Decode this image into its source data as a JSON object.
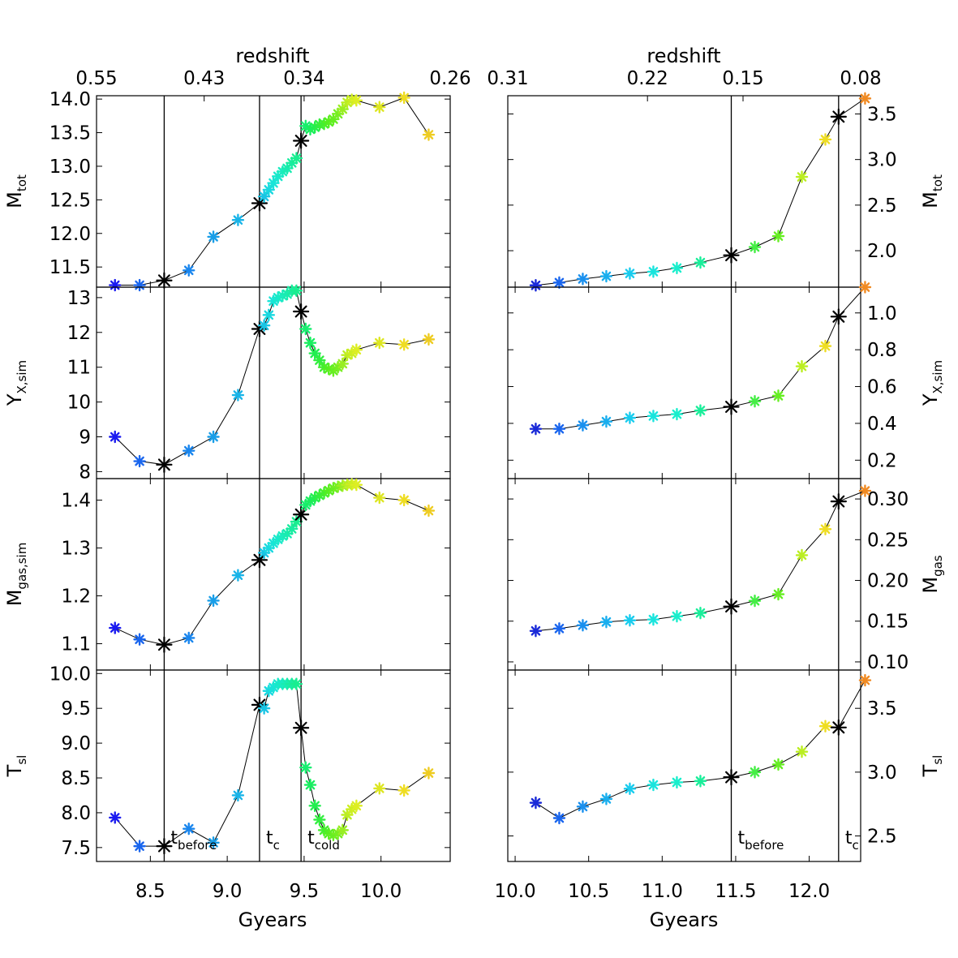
{
  "figure": {
    "left": {
      "xlabel": "Gyears",
      "top_label": "redshift",
      "xlim": [
        8.15,
        10.45
      ],
      "xticks": [
        "8.5",
        "9.0",
        "9.5",
        "10.0"
      ],
      "xtick_values": [
        8.5,
        9.0,
        9.5,
        10.0
      ],
      "top_ticks": [
        "0.55",
        "0.43",
        "0.34",
        "0.26"
      ],
      "top_tick_times": [
        8.15,
        8.85,
        9.5,
        10.45
      ],
      "vlines": [
        {
          "x": 8.59,
          "label_main": "t",
          "label_sub": "before"
        },
        {
          "x": 9.21,
          "label_main": "t",
          "label_sub": "c"
        },
        {
          "x": 9.48,
          "label_main": "t",
          "label_sub": "cold"
        }
      ],
      "x": [
        8.27,
        8.43,
        8.59,
        8.75,
        8.91,
        9.07,
        9.21,
        9.24,
        9.27,
        9.3,
        9.33,
        9.36,
        9.39,
        9.42,
        9.45,
        9.48,
        9.51,
        9.54,
        9.57,
        9.6,
        9.63,
        9.66,
        9.69,
        9.72,
        9.75,
        9.78,
        9.81,
        9.84,
        9.99,
        10.15,
        10.31
      ],
      "special": [
        2,
        6,
        15
      ],
      "colors": [
        "#1a1af0",
        "#1a66ee",
        "#000000",
        "#1a86ee",
        "#199ee8",
        "#19b4e8",
        "#000000",
        "#19c4e4",
        "#19d8e0",
        "#19e4d8",
        "#19e8cc",
        "#19ecc0",
        "#19ecb0",
        "#19eca0",
        "#19ee90",
        "#000000",
        "#19ee70",
        "#19ee60",
        "#22ee50",
        "#33ee40",
        "#44ee30",
        "#55ee22",
        "#66ee22",
        "#77ee22",
        "#99ee22",
        "#bbee22",
        "#ccee22",
        "#ddee22",
        "#dde622",
        "#eedd22",
        "#eecc22"
      ]
    },
    "right": {
      "xlabel": "Gyears",
      "top_label": "redshift",
      "xlim": [
        9.95,
        12.35
      ],
      "xticks": [
        "10.0",
        "10.5",
        "11.0",
        "11.5",
        "12.0"
      ],
      "xtick_values": [
        10.0,
        10.5,
        11.0,
        11.5,
        12.0
      ],
      "top_ticks": [
        "0.31",
        "0.22",
        "0.15",
        "0.08"
      ],
      "top_tick_times": [
        9.95,
        10.9,
        11.55,
        12.35
      ],
      "vlines": [
        {
          "x": 11.47,
          "label_main": "t",
          "label_sub": "before"
        },
        {
          "x": 12.2,
          "label_main": "t",
          "label_sub": "c"
        }
      ],
      "x": [
        10.14,
        10.3,
        10.46,
        10.62,
        10.78,
        10.94,
        11.1,
        11.26,
        11.47,
        11.63,
        11.79,
        11.95,
        12.11,
        12.2,
        12.38
      ],
      "special": [
        8,
        13
      ],
      "colors": [
        "#1a2ad8",
        "#1a66ee",
        "#1a90ee",
        "#19aeee",
        "#19ccee",
        "#19e4dd",
        "#19eecc",
        "#19ee9a",
        "#000000",
        "#44ee44",
        "#66ee22",
        "#bbee22",
        "#eedd22",
        "#000000",
        "#f08a22"
      ]
    }
  },
  "chart_data": [
    {
      "type": "scatter",
      "panel": "left-1",
      "ylabel": "M",
      "ylabel_sub": "tot",
      "ylim": [
        11.2,
        14.05
      ],
      "yticks": [
        "11.5",
        "12.0",
        "12.5",
        "13.0",
        "13.5",
        "14.0"
      ],
      "ytick_values": [
        11.5,
        12.0,
        12.5,
        13.0,
        13.5,
        14.0
      ],
      "y": [
        11.23,
        11.23,
        11.3,
        11.45,
        11.95,
        12.2,
        12.45,
        12.55,
        12.65,
        12.75,
        12.85,
        12.92,
        12.97,
        13.05,
        13.12,
        13.38,
        13.6,
        13.55,
        13.58,
        13.62,
        13.63,
        13.66,
        13.7,
        13.78,
        13.85,
        13.95,
        13.99,
        13.98,
        13.88,
        14.02,
        13.47
      ]
    },
    {
      "type": "scatter",
      "panel": "left-2",
      "ylabel": "Y",
      "ylabel_sub": "X,sim",
      "ylim": [
        7.8,
        13.3
      ],
      "yticks": [
        "8",
        "9",
        "10",
        "11",
        "12",
        "13"
      ],
      "ytick_values": [
        8,
        9,
        10,
        11,
        12,
        13
      ],
      "y": [
        9.0,
        8.3,
        8.2,
        8.6,
        9.0,
        10.2,
        12.1,
        12.2,
        12.5,
        12.9,
        13.0,
        13.05,
        13.1,
        13.2,
        13.2,
        12.6,
        12.1,
        11.7,
        11.4,
        11.2,
        11.0,
        10.95,
        10.9,
        11.0,
        11.1,
        11.35,
        11.4,
        11.5,
        11.7,
        11.65,
        11.8
      ]
    },
    {
      "type": "scatter",
      "panel": "left-3",
      "ylabel": "M",
      "ylabel_sub": "gas,sim",
      "ylim": [
        1.045,
        1.445
      ],
      "yticks": [
        "1.1",
        "1.2",
        "1.3",
        "1.4"
      ],
      "ytick_values": [
        1.1,
        1.2,
        1.3,
        1.4
      ],
      "y": [
        1.133,
        1.109,
        1.098,
        1.112,
        1.19,
        1.243,
        1.275,
        1.29,
        1.3,
        1.31,
        1.318,
        1.325,
        1.33,
        1.34,
        1.355,
        1.37,
        1.39,
        1.398,
        1.405,
        1.41,
        1.415,
        1.42,
        1.425,
        1.428,
        1.43,
        1.432,
        1.433,
        1.432,
        1.405,
        1.4,
        1.378
      ]
    },
    {
      "type": "scatter",
      "panel": "left-4",
      "ylabel": "T",
      "ylabel_sub": "sl",
      "ylim": [
        7.3,
        10.05
      ],
      "yticks": [
        "7.5",
        "8.0",
        "8.5",
        "9.0",
        "9.5",
        "10.0"
      ],
      "ytick_values": [
        7.5,
        8.0,
        8.5,
        9.0,
        9.5,
        10.0
      ],
      "y": [
        7.93,
        7.52,
        7.52,
        7.77,
        7.57,
        8.25,
        9.55,
        9.5,
        9.75,
        9.8,
        9.85,
        9.85,
        9.85,
        9.85,
        9.85,
        9.22,
        8.65,
        8.4,
        8.1,
        7.9,
        7.75,
        7.7,
        7.68,
        7.7,
        7.75,
        7.97,
        8.05,
        8.1,
        8.35,
        8.32,
        8.57
      ]
    },
    {
      "type": "scatter",
      "panel": "right-1",
      "ylabel": "M",
      "ylabel_sub": "tot",
      "ylim": [
        1.6,
        3.7
      ],
      "yticks": [
        "2.0",
        "2.5",
        "3.0",
        "3.5"
      ],
      "ytick_values": [
        2.0,
        2.5,
        3.0,
        3.5
      ],
      "y": [
        1.62,
        1.65,
        1.69,
        1.72,
        1.75,
        1.77,
        1.81,
        1.87,
        1.95,
        2.04,
        2.16,
        2.81,
        3.22,
        3.47,
        3.67
      ]
    },
    {
      "type": "scatter",
      "panel": "right-2",
      "ylabel": "Y",
      "ylabel_sub": "X,sim",
      "ylim": [
        0.1,
        1.14
      ],
      "yticks": [
        "0.2",
        "0.4",
        "0.6",
        "0.8",
        "1.0"
      ],
      "ytick_values": [
        0.2,
        0.4,
        0.6,
        0.8,
        1.0
      ],
      "y": [
        0.37,
        0.37,
        0.39,
        0.41,
        0.43,
        0.44,
        0.45,
        0.47,
        0.49,
        0.52,
        0.55,
        0.71,
        0.82,
        0.98,
        1.14
      ]
    },
    {
      "type": "scatter",
      "panel": "right-3",
      "ylabel": "M",
      "ylabel_sub": "gas",
      "ylim": [
        0.09,
        0.325
      ],
      "yticks": [
        "0.10",
        "0.15",
        "0.20",
        "0.25",
        "0.30"
      ],
      "ytick_values": [
        0.1,
        0.15,
        0.2,
        0.25,
        0.3
      ],
      "y": [
        0.138,
        0.141,
        0.145,
        0.149,
        0.151,
        0.152,
        0.156,
        0.16,
        0.168,
        0.175,
        0.183,
        0.231,
        0.263,
        0.297,
        0.31
      ]
    },
    {
      "type": "scatter",
      "panel": "right-4",
      "ylabel": "T",
      "ylabel_sub": "sl",
      "ylim": [
        2.3,
        3.8
      ],
      "yticks": [
        "2.5",
        "3.0",
        "3.5"
      ],
      "ytick_values": [
        2.5,
        3.0,
        3.5
      ],
      "y": [
        2.76,
        2.64,
        2.73,
        2.79,
        2.87,
        2.9,
        2.92,
        2.93,
        2.96,
        3.0,
        3.06,
        3.16,
        3.36,
        3.35,
        3.72
      ]
    }
  ]
}
